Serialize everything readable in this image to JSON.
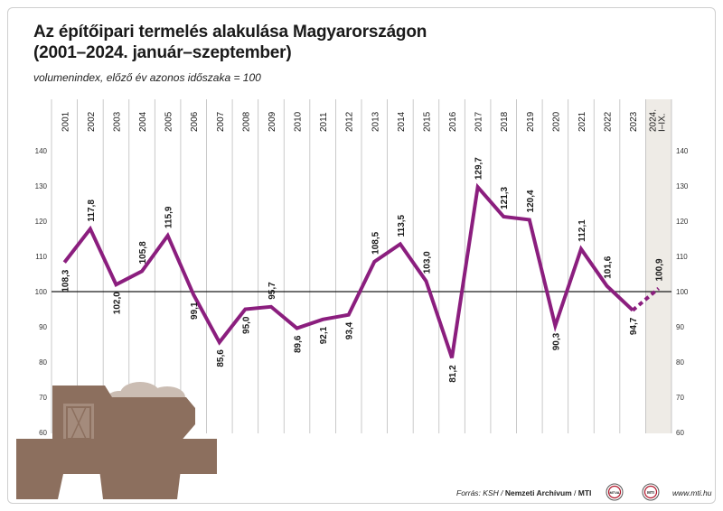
{
  "title_line1": "Az építőipari termelés alakulása Magyarországon",
  "title_line2": "(2001–2024. január–szeptember)",
  "subtitle": "volumenindex, előző év azonos időszaka = 100",
  "footer": {
    "prefix": "Forrás: KSH / ",
    "archive": "Nemzeti Archívum",
    "sep": " / ",
    "agency": "MTI"
  },
  "badges": [
    "MTVA",
    "MTI"
  ],
  "website": "www.mti.hu",
  "chart_data": {
    "type": "line",
    "categories": [
      "2001",
      "2002",
      "2003",
      "2004",
      "2005",
      "2006",
      "2007",
      "2008",
      "2009",
      "2010",
      "2011",
      "2012",
      "2013",
      "2014",
      "2015",
      "2016",
      "2017",
      "2018",
      "2019",
      "2020",
      "2021",
      "2022",
      "2023",
      "2024. I–IX."
    ],
    "values": [
      108.3,
      117.8,
      102.0,
      105.8,
      115.9,
      99.1,
      85.6,
      95.0,
      95.7,
      89.6,
      92.1,
      93.4,
      108.5,
      113.5,
      103.0,
      81.2,
      129.7,
      121.3,
      120.4,
      90.3,
      112.1,
      101.6,
      94.7,
      100.9
    ],
    "labels": [
      "108,3",
      "117,8",
      "102,0",
      "105,8",
      "115,9",
      "99,1",
      "85,6",
      "95,0",
      "95,7",
      "89,6",
      "92,1",
      "93,4",
      "108,5",
      "113,5",
      "103,0",
      "81,2",
      "129,7",
      "121,3",
      "120,4",
      "90,3",
      "112,1",
      "101,6",
      "94,7",
      "100,9"
    ],
    "ylim": [
      60,
      140
    ],
    "yticks": [
      60,
      70,
      80,
      90,
      100,
      110,
      120,
      130,
      140
    ],
    "baseline": 100,
    "line_color": "#8b1e7e",
    "highlight_last": true,
    "last_segment_dashed": true
  }
}
